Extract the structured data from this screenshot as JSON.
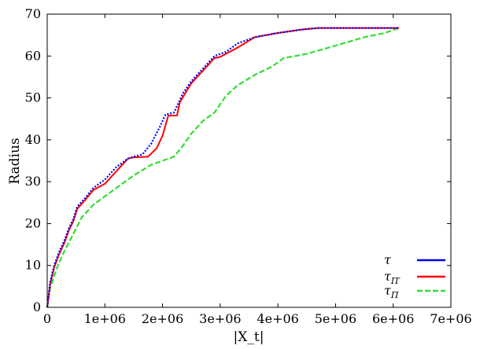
{
  "chart_data": {
    "type": "line",
    "xlabel": "|X_t|",
    "ylabel": "Radius",
    "xlim": [
      0,
      7000000
    ],
    "ylim": [
      0,
      70
    ],
    "x_ticks": [
      0,
      1000000,
      2000000,
      3000000,
      4000000,
      5000000,
      6000000,
      7000000
    ],
    "x_tick_labels": [
      "0",
      "1e+06",
      "2e+06",
      "3e+06",
      "4e+06",
      "5e+06",
      "6e+06",
      "7e+06"
    ],
    "y_ticks": [
      0,
      10,
      20,
      30,
      40,
      50,
      60,
      70
    ],
    "y_tick_labels": [
      "0",
      "10",
      "20",
      "30",
      "40",
      "50",
      "60",
      "70"
    ],
    "grid": false,
    "legend_position": "bottom-right",
    "series": [
      {
        "name": "τ",
        "color": "#0000ff",
        "style": "dotted",
        "points": [
          [
            0,
            0
          ],
          [
            50000,
            6
          ],
          [
            120000,
            10
          ],
          [
            200000,
            13
          ],
          [
            300000,
            16
          ],
          [
            380000,
            19
          ],
          [
            450000,
            21
          ],
          [
            520000,
            24
          ],
          [
            650000,
            26
          ],
          [
            800000,
            28.5
          ],
          [
            1000000,
            30.5
          ],
          [
            1200000,
            33.5
          ],
          [
            1400000,
            35.5
          ],
          [
            1500000,
            36
          ],
          [
            1650000,
            36.5
          ],
          [
            1800000,
            39
          ],
          [
            1950000,
            43
          ],
          [
            2050000,
            46
          ],
          [
            2200000,
            46.5
          ],
          [
            2350000,
            51
          ],
          [
            2500000,
            54
          ],
          [
            2700000,
            57
          ],
          [
            2900000,
            60
          ],
          [
            3100000,
            61
          ],
          [
            3300000,
            63
          ],
          [
            3600000,
            64.5
          ],
          [
            4000000,
            65.5
          ],
          [
            4400000,
            66.3
          ],
          [
            4700000,
            66.7
          ],
          [
            5000000,
            66.7
          ],
          [
            6100000,
            66.7
          ]
        ]
      },
      {
        "name": "τ_Π′",
        "color": "#ff0000",
        "style": "solid",
        "points": [
          [
            0,
            0
          ],
          [
            50000,
            5.5
          ],
          [
            120000,
            9.5
          ],
          [
            200000,
            12.5
          ],
          [
            300000,
            15.5
          ],
          [
            380000,
            18.5
          ],
          [
            450000,
            20.5
          ],
          [
            520000,
            23.5
          ],
          [
            650000,
            25.5
          ],
          [
            800000,
            28
          ],
          [
            1000000,
            29.5
          ],
          [
            1200000,
            32.5
          ],
          [
            1400000,
            35.5
          ],
          [
            1500000,
            35.8
          ],
          [
            1750000,
            36
          ],
          [
            1900000,
            38
          ],
          [
            2000000,
            41
          ],
          [
            2100000,
            45.8
          ],
          [
            2250000,
            45.8
          ],
          [
            2300000,
            49
          ],
          [
            2500000,
            53.5
          ],
          [
            2700000,
            56.5
          ],
          [
            2900000,
            59.5
          ],
          [
            3000000,
            59.8
          ],
          [
            3300000,
            62
          ],
          [
            3600000,
            64.5
          ],
          [
            4000000,
            65.5
          ],
          [
            4400000,
            66.3
          ],
          [
            4700000,
            66.7
          ],
          [
            5000000,
            66.7
          ],
          [
            6100000,
            66.7
          ]
        ]
      },
      {
        "name": "τ_Π",
        "color": "#33dd33",
        "style": "dashed",
        "points": [
          [
            0,
            0
          ],
          [
            50000,
            4.5
          ],
          [
            120000,
            7.5
          ],
          [
            200000,
            10.5
          ],
          [
            300000,
            13.5
          ],
          [
            450000,
            17.5
          ],
          [
            600000,
            21.5
          ],
          [
            800000,
            24.5
          ],
          [
            1000000,
            26.5
          ],
          [
            1200000,
            28.5
          ],
          [
            1500000,
            31.5
          ],
          [
            1800000,
            34
          ],
          [
            2000000,
            35
          ],
          [
            2200000,
            36
          ],
          [
            2350000,
            38.5
          ],
          [
            2500000,
            41.5
          ],
          [
            2700000,
            44.5
          ],
          [
            2900000,
            46.5
          ],
          [
            3100000,
            50.5
          ],
          [
            3300000,
            53
          ],
          [
            3600000,
            55.5
          ],
          [
            3900000,
            57.5
          ],
          [
            4100000,
            59.5
          ],
          [
            4500000,
            60.5
          ],
          [
            5000000,
            62.5
          ],
          [
            5500000,
            64.5
          ],
          [
            5850000,
            65.5
          ],
          [
            6100000,
            66.7
          ]
        ]
      }
    ]
  }
}
